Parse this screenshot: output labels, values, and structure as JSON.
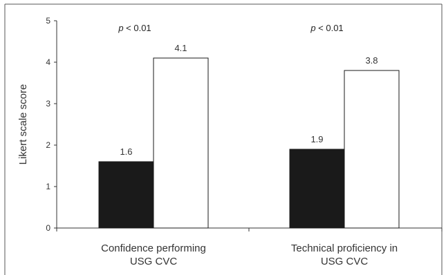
{
  "chart_data": {
    "type": "bar",
    "ylabel": "Likert scale score",
    "xlabel": "",
    "ylim": [
      0,
      5
    ],
    "yticks": [
      "0",
      "1",
      "2",
      "3",
      "4",
      "5"
    ],
    "categories": [
      [
        "Confidence performing",
        "USG CVC"
      ],
      [
        "Technical proficiency in",
        "USG CVC"
      ]
    ],
    "series": [
      {
        "values": [
          1.6,
          1.9
        ],
        "value_labels": [
          "1.6",
          "1.9"
        ],
        "fill": "#1a1a1a"
      },
      {
        "values": [
          4.1,
          3.8
        ],
        "value_labels": [
          "4.1",
          "3.8"
        ],
        "fill": "#ffffff"
      }
    ],
    "annotations": [
      {
        "italic": "p",
        "text": " < 0.01"
      },
      {
        "italic": "p",
        "text": " < 0.01"
      }
    ],
    "grid": false,
    "legend": "none"
  }
}
